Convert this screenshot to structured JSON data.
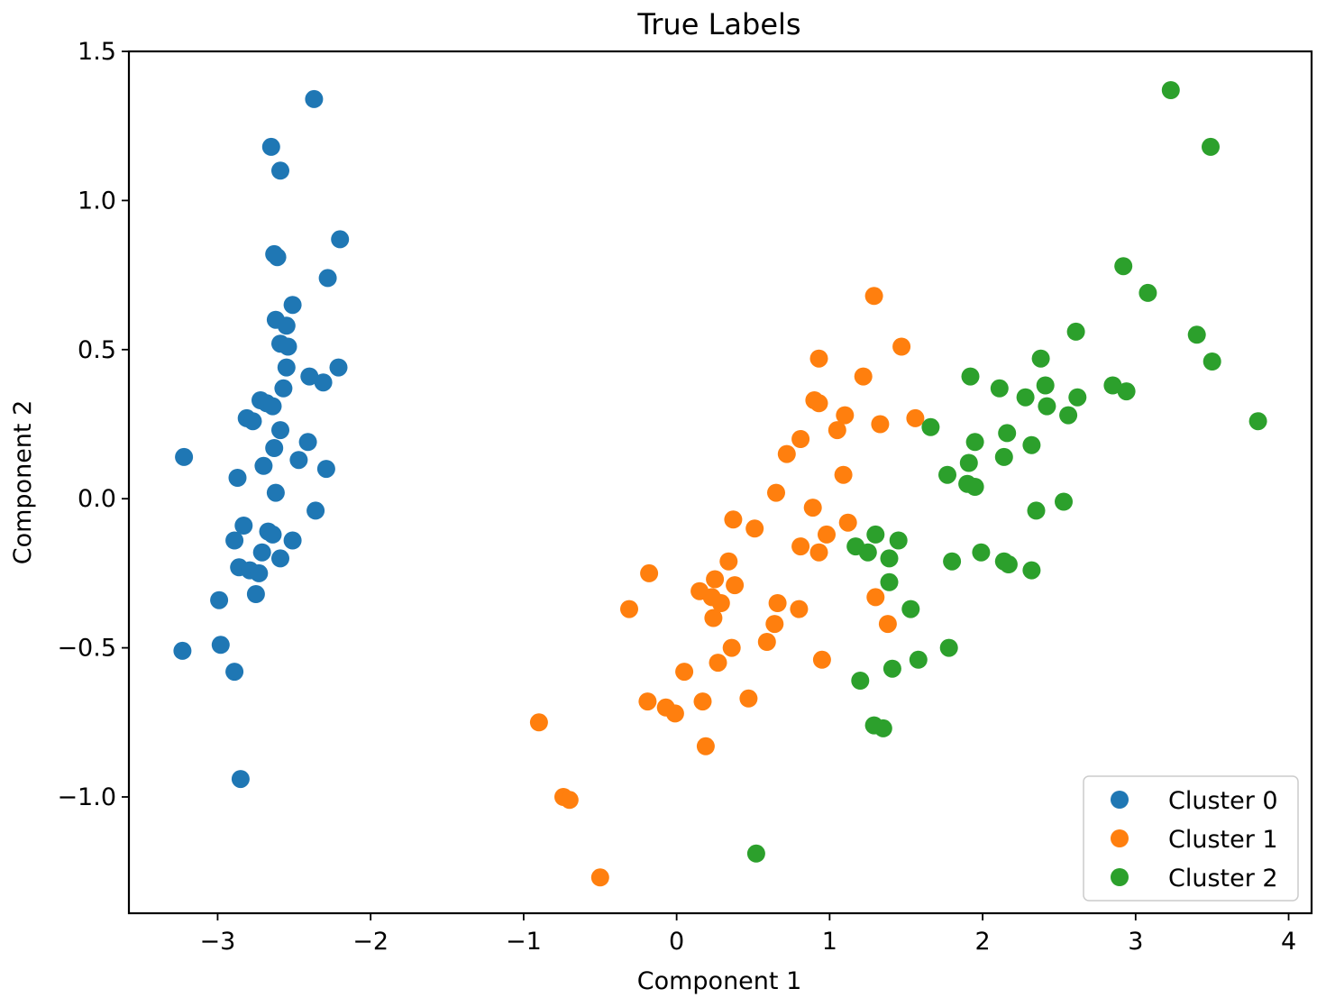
{
  "chart_data": {
    "type": "scatter",
    "title": "True Labels",
    "xlabel": "Component 1",
    "ylabel": "Component 2",
    "xlim": [
      -3.58,
      4.15
    ],
    "ylim": [
      -1.39,
      1.5
    ],
    "xticks": [
      -3,
      -2,
      -1,
      0,
      1,
      2,
      3,
      4
    ],
    "yticks": [
      -1.0,
      -0.5,
      0.0,
      0.5,
      1.0,
      1.5
    ],
    "xtick_labels": [
      "−3",
      "−2",
      "−1",
      "0",
      "1",
      "2",
      "3",
      "4"
    ],
    "ytick_labels": [
      "−1.0",
      "−0.5",
      "0.0",
      "0.5",
      "1.0",
      "1.5"
    ],
    "grid": false,
    "legend_position": "bottom-right",
    "series": [
      {
        "name": "Cluster 0",
        "color": "#1f77b4",
        "points": [
          [
            -2.37,
            1.34
          ],
          [
            -2.65,
            1.18
          ],
          [
            -2.59,
            1.1
          ],
          [
            -2.2,
            0.87
          ],
          [
            -2.63,
            0.82
          ],
          [
            -2.61,
            0.81
          ],
          [
            -2.28,
            0.74
          ],
          [
            -2.51,
            0.65
          ],
          [
            -2.62,
            0.6
          ],
          [
            -2.55,
            0.58
          ],
          [
            -2.59,
            0.52
          ],
          [
            -2.54,
            0.51
          ],
          [
            -2.55,
            0.44
          ],
          [
            -2.21,
            0.44
          ],
          [
            -2.4,
            0.41
          ],
          [
            -2.31,
            0.39
          ],
          [
            -2.57,
            0.37
          ],
          [
            -2.72,
            0.33
          ],
          [
            -2.68,
            0.32
          ],
          [
            -2.64,
            0.31
          ],
          [
            -2.81,
            0.27
          ],
          [
            -2.77,
            0.26
          ],
          [
            -2.59,
            0.23
          ],
          [
            -2.41,
            0.19
          ],
          [
            -2.63,
            0.17
          ],
          [
            -3.22,
            0.14
          ],
          [
            -2.47,
            0.13
          ],
          [
            -2.7,
            0.11
          ],
          [
            -2.29,
            0.1
          ],
          [
            -2.87,
            0.07
          ],
          [
            -2.62,
            0.02
          ],
          [
            -2.36,
            -0.04
          ],
          [
            -2.83,
            -0.09
          ],
          [
            -2.67,
            -0.11
          ],
          [
            -2.64,
            -0.12
          ],
          [
            -2.89,
            -0.14
          ],
          [
            -2.51,
            -0.14
          ],
          [
            -2.71,
            -0.18
          ],
          [
            -2.59,
            -0.2
          ],
          [
            -2.86,
            -0.23
          ],
          [
            -2.79,
            -0.24
          ],
          [
            -2.73,
            -0.25
          ],
          [
            -2.75,
            -0.32
          ],
          [
            -2.99,
            -0.34
          ],
          [
            -2.98,
            -0.49
          ],
          [
            -3.23,
            -0.51
          ],
          [
            -2.89,
            -0.58
          ],
          [
            -2.85,
            -0.94
          ]
        ]
      },
      {
        "name": "Cluster 1",
        "color": "#ff7f0e",
        "points": [
          [
            1.29,
            0.68
          ],
          [
            1.47,
            0.51
          ],
          [
            0.93,
            0.47
          ],
          [
            1.22,
            0.41
          ],
          [
            0.9,
            0.33
          ],
          [
            0.93,
            0.32
          ],
          [
            1.1,
            0.28
          ],
          [
            1.56,
            0.27
          ],
          [
            1.33,
            0.25
          ],
          [
            1.05,
            0.23
          ],
          [
            0.81,
            0.2
          ],
          [
            0.72,
            0.15
          ],
          [
            1.09,
            0.08
          ],
          [
            0.65,
            0.02
          ],
          [
            0.89,
            -0.03
          ],
          [
            0.37,
            -0.07
          ],
          [
            1.12,
            -0.08
          ],
          [
            0.51,
            -0.1
          ],
          [
            0.98,
            -0.12
          ],
          [
            0.81,
            -0.16
          ],
          [
            0.93,
            -0.18
          ],
          [
            0.34,
            -0.21
          ],
          [
            -0.18,
            -0.25
          ],
          [
            0.25,
            -0.27
          ],
          [
            0.38,
            -0.29
          ],
          [
            0.15,
            -0.31
          ],
          [
            0.23,
            -0.33
          ],
          [
            1.3,
            -0.33
          ],
          [
            0.29,
            -0.35
          ],
          [
            0.66,
            -0.35
          ],
          [
            -0.31,
            -0.37
          ],
          [
            0.8,
            -0.37
          ],
          [
            0.24,
            -0.4
          ],
          [
            0.64,
            -0.42
          ],
          [
            1.38,
            -0.42
          ],
          [
            0.59,
            -0.48
          ],
          [
            0.36,
            -0.5
          ],
          [
            0.95,
            -0.54
          ],
          [
            0.27,
            -0.55
          ],
          [
            0.05,
            -0.58
          ],
          [
            -0.19,
            -0.68
          ],
          [
            0.47,
            -0.67
          ],
          [
            0.17,
            -0.68
          ],
          [
            -0.07,
            -0.7
          ],
          [
            -0.01,
            -0.72
          ],
          [
            -0.9,
            -0.75
          ],
          [
            0.19,
            -0.83
          ],
          [
            -0.74,
            -1.0
          ],
          [
            -0.7,
            -1.01
          ],
          [
            -0.5,
            -1.27
          ]
        ]
      },
      {
        "name": "Cluster 2",
        "color": "#2ca02c",
        "points": [
          [
            3.23,
            1.37
          ],
          [
            3.49,
            1.18
          ],
          [
            2.92,
            0.78
          ],
          [
            3.08,
            0.69
          ],
          [
            2.61,
            0.56
          ],
          [
            3.4,
            0.55
          ],
          [
            2.38,
            0.47
          ],
          [
            3.5,
            0.46
          ],
          [
            1.92,
            0.41
          ],
          [
            2.41,
            0.38
          ],
          [
            2.85,
            0.38
          ],
          [
            2.11,
            0.37
          ],
          [
            2.94,
            0.36
          ],
          [
            2.62,
            0.34
          ],
          [
            2.28,
            0.34
          ],
          [
            2.42,
            0.31
          ],
          [
            2.56,
            0.28
          ],
          [
            3.8,
            0.26
          ],
          [
            1.66,
            0.24
          ],
          [
            2.16,
            0.22
          ],
          [
            1.95,
            0.19
          ],
          [
            2.32,
            0.18
          ],
          [
            2.14,
            0.14
          ],
          [
            1.91,
            0.12
          ],
          [
            1.77,
            0.08
          ],
          [
            1.9,
            0.05
          ],
          [
            1.95,
            0.04
          ],
          [
            2.53,
            -0.01
          ],
          [
            2.35,
            -0.04
          ],
          [
            1.3,
            -0.12
          ],
          [
            1.45,
            -0.14
          ],
          [
            1.17,
            -0.16
          ],
          [
            1.25,
            -0.18
          ],
          [
            1.99,
            -0.18
          ],
          [
            1.39,
            -0.2
          ],
          [
            2.14,
            -0.21
          ],
          [
            1.8,
            -0.21
          ],
          [
            2.17,
            -0.22
          ],
          [
            2.32,
            -0.24
          ],
          [
            1.39,
            -0.28
          ],
          [
            1.53,
            -0.37
          ],
          [
            1.78,
            -0.5
          ],
          [
            1.58,
            -0.54
          ],
          [
            1.41,
            -0.57
          ],
          [
            1.2,
            -0.61
          ],
          [
            1.29,
            -0.76
          ],
          [
            1.35,
            -0.77
          ],
          [
            0.52,
            -1.19
          ]
        ]
      }
    ]
  }
}
